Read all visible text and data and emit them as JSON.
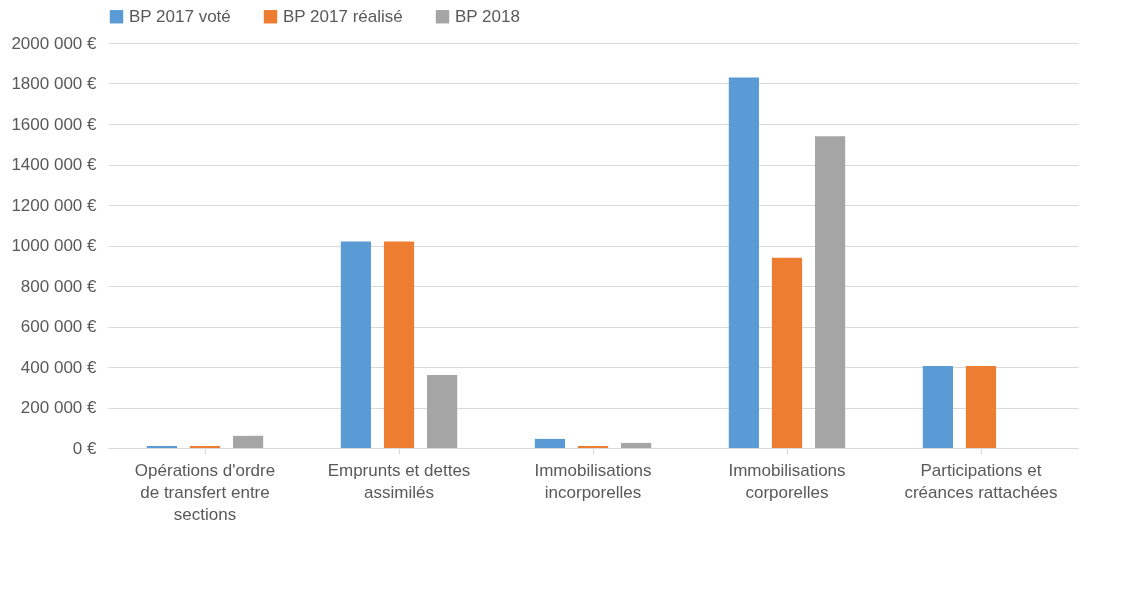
{
  "chart_data": {
    "type": "bar",
    "categories": [
      "Opérations d'ordre de transfert entre sections",
      "Emprunts et dettes assimilés",
      "Immobilisations incorporelles",
      "Immobilisations corporelles",
      "Participations et créances rattachées"
    ],
    "series": [
      {
        "name": "BP 2017 voté",
        "color": "#5b9bd5",
        "values": [
          10000,
          1020000,
          45000,
          1830000,
          405000
        ]
      },
      {
        "name": "BP 2017 réalisé",
        "color": "#ed7d31",
        "values": [
          10000,
          1020000,
          10000,
          940000,
          405000
        ]
      },
      {
        "name": "BP 2018",
        "color": "#a5a5a5",
        "values": [
          60000,
          360000,
          25000,
          1540000,
          0
        ]
      }
    ],
    "ylim": [
      0,
      2000000
    ],
    "yticks": [
      {
        "value": 0,
        "label": "0 €"
      },
      {
        "value": 200000,
        "label": "200 000 €"
      },
      {
        "value": 400000,
        "label": "400 000 €"
      },
      {
        "value": 600000,
        "label": "600 000 €"
      },
      {
        "value": 800000,
        "label": "800 000 €"
      },
      {
        "value": 1000000,
        "label": "1000 000 €"
      },
      {
        "value": 1200000,
        "label": "1200 000 €"
      },
      {
        "value": 1400000,
        "label": "1400 000 €"
      },
      {
        "value": 1600000,
        "label": "1600 000 €"
      },
      {
        "value": 1800000,
        "label": "1800 000 €"
      },
      {
        "value": 2000000,
        "label": "2000 000 €"
      }
    ],
    "grid": "y",
    "legend": "top"
  }
}
